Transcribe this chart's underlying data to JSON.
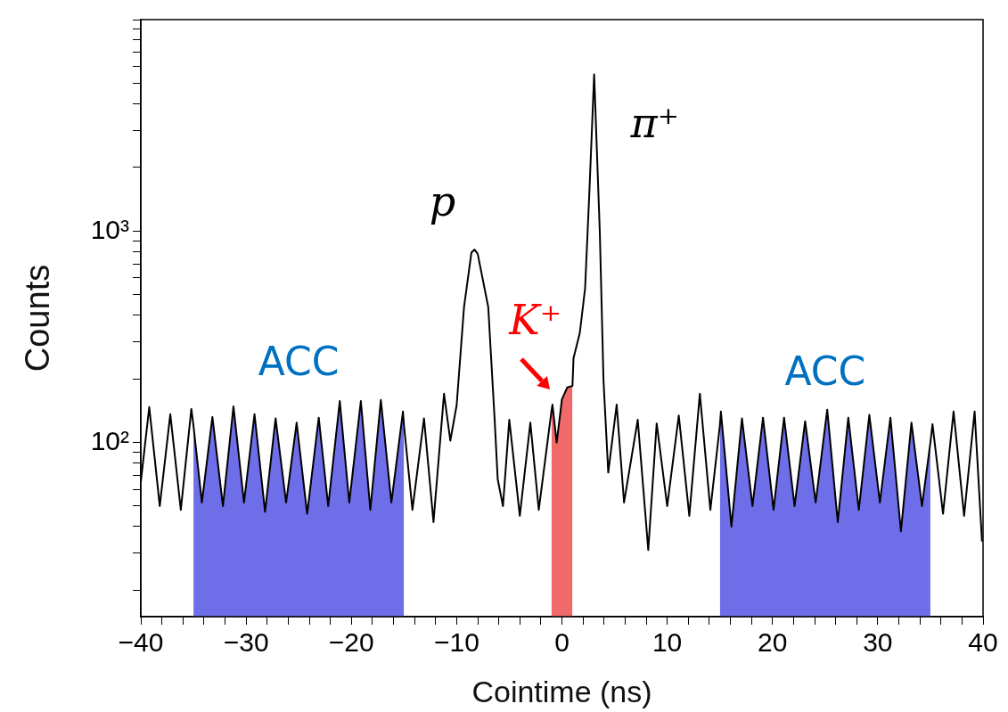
{
  "chart_data": {
    "type": "line",
    "xlabel": "Cointime (ns)",
    "ylabel": "Counts",
    "log": "y",
    "xlim": [
      -40,
      40
    ],
    "xticks": [
      {
        "value": -40,
        "label": "−40"
      },
      {
        "value": -38,
        "label": null
      },
      {
        "value": -36,
        "label": null
      },
      {
        "value": -34,
        "label": null
      },
      {
        "value": -32,
        "label": null
      },
      {
        "value": -30,
        "label": "−30"
      },
      {
        "value": -28,
        "label": null
      },
      {
        "value": -26,
        "label": null
      },
      {
        "value": -24,
        "label": null
      },
      {
        "value": -22,
        "label": null
      },
      {
        "value": -20,
        "label": "−20"
      },
      {
        "value": -18,
        "label": null
      },
      {
        "value": -16,
        "label": null
      },
      {
        "value": -14,
        "label": null
      },
      {
        "value": -12,
        "label": null
      },
      {
        "value": -10,
        "label": "−10"
      },
      {
        "value": -8,
        "label": null
      },
      {
        "value": -6,
        "label": null
      },
      {
        "value": -4,
        "label": null
      },
      {
        "value": -2,
        "label": null
      },
      0,
      {
        "value": 2,
        "label": null
      },
      {
        "value": 4,
        "label": null
      },
      {
        "value": 6,
        "label": null
      },
      {
        "value": 8,
        "label": null
      },
      10,
      {
        "value": 12,
        "label": null
      },
      {
        "value": 14,
        "label": null
      },
      {
        "value": 16,
        "label": null
      },
      {
        "value": 18,
        "label": null
      },
      20,
      {
        "value": 22,
        "label": null
      },
      {
        "value": 24,
        "label": null
      },
      {
        "value": 26,
        "label": null
      },
      {
        "value": 28,
        "label": null
      },
      30,
      {
        "value": 32,
        "label": null
      },
      {
        "value": 34,
        "label": null
      },
      {
        "value": 36,
        "label": null
      },
      {
        "value": 38,
        "label": null
      },
      40
    ],
    "ylim": [
      15,
      10000
    ],
    "yticks": [
      {
        "value": 20,
        "label": null
      },
      {
        "value": 30,
        "label": null
      },
      {
        "value": 40,
        "label": null
      },
      {
        "value": 50,
        "label": null
      },
      {
        "value": 60,
        "label": null
      },
      {
        "value": 70,
        "label": null
      },
      {
        "value": 80,
        "label": null
      },
      {
        "value": 90,
        "label": null
      },
      {
        "value": 100,
        "label": "10²"
      },
      {
        "value": 200,
        "label": null
      },
      {
        "value": 300,
        "label": null
      },
      {
        "value": 400,
        "label": null
      },
      {
        "value": 500,
        "label": null
      },
      {
        "value": 600,
        "label": null
      },
      {
        "value": 700,
        "label": null
      },
      {
        "value": 800,
        "label": null
      },
      {
        "value": 900,
        "label": null
      },
      {
        "value": 1000,
        "label": "10³"
      },
      {
        "value": 2000,
        "label": null
      },
      {
        "value": 3000,
        "label": null
      },
      {
        "value": 4000,
        "label": null
      },
      {
        "value": 5000,
        "label": null
      },
      {
        "value": 6000,
        "label": null
      },
      {
        "value": 7000,
        "label": null
      },
      {
        "value": 8000,
        "label": null
      },
      {
        "value": 9000,
        "label": null
      },
      {
        "value": 10000,
        "label": null
      }
    ],
    "annotations": [
      {
        "text": "p",
        "x": -8.3,
        "y": 817
      },
      {
        "text": "π⁺",
        "x": 3.06,
        "y": 5500
      }
    ],
    "series": [
      {
        "color": "#000000",
        "x": [
          -40,
          -39.2,
          -38.2,
          -37.2,
          -36.2,
          -35.2,
          -35.0,
          -34.2,
          -33.2,
          -32.2,
          -31.2,
          -30.2,
          -29.2,
          -28.2,
          -27.2,
          -26.2,
          -25.2,
          -24.2,
          -23.1,
          -22.2,
          -21.1,
          -20.2,
          -19.1,
          -18.2,
          -17.2,
          -16.2,
          -15.1,
          -15.0,
          -14.2,
          -13.1,
          -12.2,
          -11.2,
          -10.6,
          -10.0,
          -9.3,
          -8.6,
          -8.3,
          -8.0,
          -7.0,
          -6.4,
          -6.1,
          -5.6,
          -5.0,
          -4.0,
          -3.0,
          -2.2,
          -1.0,
          -0.9,
          -0.5,
          0.0,
          0.5,
          1.0,
          1.1,
          1.7,
          2.2,
          2.6,
          3.06,
          3.6,
          3.95,
          4.4,
          5.2,
          5.9,
          7.2,
          8.2,
          9.0,
          10.0,
          11.1,
          12.1,
          13.1,
          14.1,
          15.0,
          15.1,
          16.1,
          17.1,
          18.1,
          19.1,
          20.1,
          21.1,
          22.1,
          23.1,
          24.1,
          25.2,
          26.2,
          27.2,
          28.2,
          29.2,
          30.2,
          31.2,
          32.2,
          33.2,
          34.2,
          35.0,
          35.2,
          36.2,
          37.2,
          38.2,
          39.2,
          39.9
        ],
        "values": [
          65,
          147,
          50,
          136,
          48,
          144,
          120,
          52,
          132,
          50,
          148,
          52,
          136,
          47,
          130,
          52,
          124,
          46,
          131,
          50,
          157,
          52,
          157,
          48,
          159,
          52,
          140,
          120,
          48,
          130,
          42,
          170,
          102,
          150,
          437,
          790,
          817,
          780,
          437,
          131,
          67,
          50,
          128,
          45,
          124,
          48,
          140,
          151,
          100,
          160,
          182,
          185,
          250,
          330,
          535,
          1500,
          5500,
          980,
          196,
          72,
          151,
          52,
          128,
          31,
          123,
          50,
          134,
          45,
          170,
          48,
          120,
          140,
          40,
          130,
          50,
          131,
          48,
          131,
          50,
          126,
          52,
          143,
          42,
          131,
          48,
          135,
          52,
          131,
          38,
          124,
          50,
          100,
          122,
          46,
          140,
          45,
          140,
          34
        ]
      },
      {
        "type": "area",
        "name": "ACC",
        "color": "#6e6ee8",
        "x": [
          -35.0,
          -34.2,
          -33.2,
          -32.2,
          -31.2,
          -30.2,
          -29.2,
          -28.2,
          -27.2,
          -26.2,
          -25.2,
          -24.2,
          -23.1,
          -22.2,
          -21.1,
          -20.2,
          -19.1,
          -18.2,
          -17.2,
          -16.2,
          -15.1,
          -15.0,
          0,
          15.0,
          15.1,
          16.1,
          17.1,
          18.1,
          19.1,
          20.1,
          21.1,
          22.1,
          23.1,
          24.1,
          25.2,
          26.2,
          27.2,
          28.2,
          29.2,
          30.2,
          31.2,
          32.2,
          33.2,
          34.2,
          35.0
        ],
        "values": [
          120,
          52,
          132,
          50,
          148,
          52,
          136,
          47,
          130,
          52,
          124,
          46,
          131,
          50,
          157,
          52,
          157,
          48,
          159,
          52,
          140,
          120,
          null,
          120,
          140,
          40,
          130,
          50,
          131,
          48,
          131,
          50,
          126,
          52,
          143,
          42,
          131,
          48,
          135,
          52,
          131,
          38,
          124,
          50,
          100
        ]
      },
      {
        "type": "area",
        "name": "K⁺",
        "color": "#f06a6a",
        "x": [
          -1.0,
          -0.9,
          -0.5,
          0.0,
          0.5,
          1.0
        ],
        "values": [
          140,
          151,
          100,
          160,
          182,
          185
        ]
      }
    ]
  }
}
